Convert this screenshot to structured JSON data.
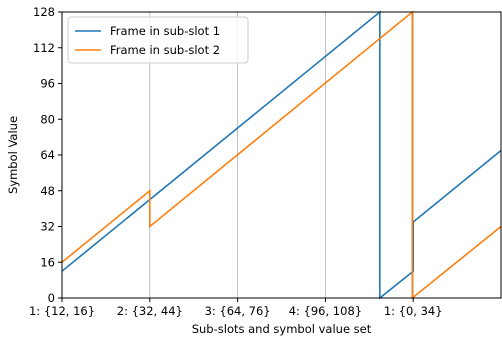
{
  "chart_data": {
    "type": "line",
    "title": "",
    "xlabel": "Sub-slots and symbol value set",
    "ylabel": "Symbol Value",
    "xlim": [
      0,
      5
    ],
    "ylim": [
      0,
      128
    ],
    "xticks": [
      {
        "x": 0,
        "label": "1: {12, 16}"
      },
      {
        "x": 1,
        "label": "2: {32, 44}"
      },
      {
        "x": 2,
        "label": "3: {64, 76}"
      },
      {
        "x": 3,
        "label": "4: {96, 108}"
      },
      {
        "x": 4,
        "label": "1: {0, 34}"
      }
    ],
    "yticks": [
      0,
      16,
      32,
      48,
      64,
      80,
      96,
      112,
      128
    ],
    "grid": {
      "vertical": true,
      "horizontal": false
    },
    "legend": {
      "position": "top-left"
    },
    "series": [
      {
        "name": "Frame in sub-slot 1",
        "color": "#1f77b4",
        "x": [
          0,
          3.62,
          3.62,
          4.0,
          4.0,
          5.0
        ],
        "y": [
          12,
          128,
          0,
          12,
          34,
          66
        ]
      },
      {
        "name": "Frame in sub-slot 2",
        "color": "#ff7f0e",
        "x": [
          0,
          1.0,
          1.0,
          3.99,
          3.99,
          5.0
        ],
        "y": [
          16,
          48,
          32,
          128,
          0,
          32
        ]
      }
    ]
  }
}
